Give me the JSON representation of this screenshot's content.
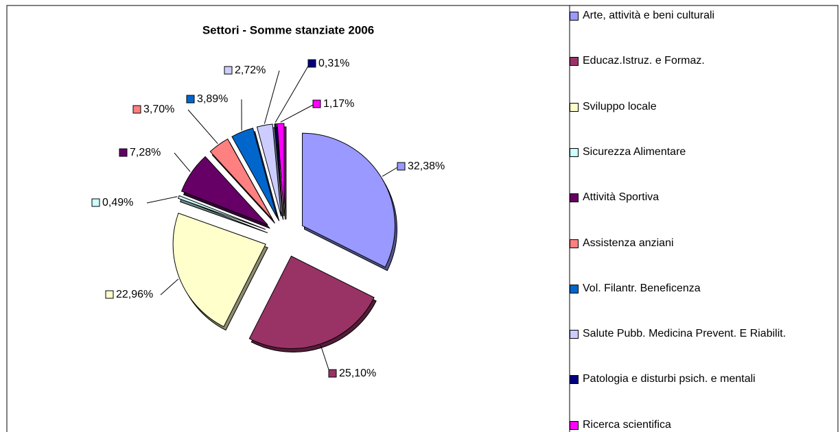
{
  "chart_data": {
    "type": "pie",
    "title": "Settori - Somme stanziate 2006",
    "categories": [
      "Arte, attività e beni culturali",
      "Educaz.Istruz. e Formaz.",
      "Sviluppo locale",
      "Sicurezza Alimentare",
      "Attività Sportiva",
      "Assistenza anziani",
      "Vol. Filantr. Beneficenza",
      "Salute Pubb. Medicina Prevent. E Riabilit.",
      "Patologia e disturbi psich. e mentali",
      "Ricerca scientifica"
    ],
    "values": [
      32.38,
      25.1,
      22.96,
      0.49,
      7.28,
      3.7,
      3.89,
      2.72,
      0.31,
      1.17
    ],
    "value_labels": [
      "32,38%",
      "25,10%",
      "22,96%",
      "0,49%",
      "7,28%",
      "3,70%",
      "3,89%",
      "2,72%",
      "0,31%",
      "1,17%"
    ],
    "colors": [
      "#9999ff",
      "#993366",
      "#ffffcc",
      "#ccffff",
      "#660066",
      "#ff8080",
      "#0066cc",
      "#ccccff",
      "#000080",
      "#ff00ff"
    ],
    "legend": "right"
  }
}
